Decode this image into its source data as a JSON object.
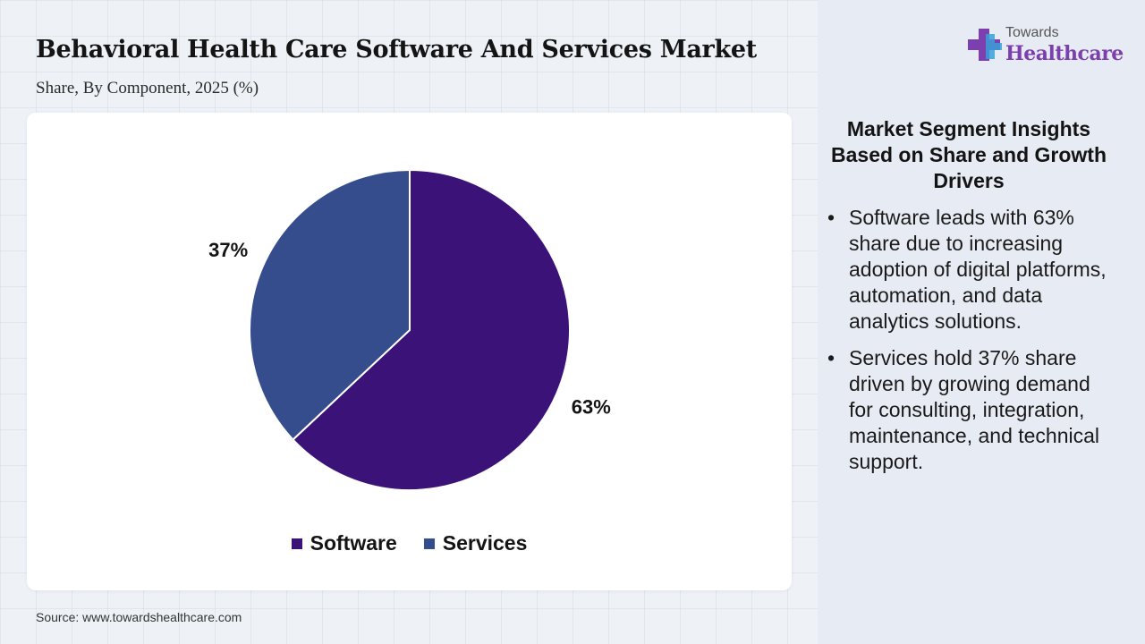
{
  "header": {
    "title": "Behavioral Health Care Software And Services Market",
    "subtitle": "Share, By Component, 2025 (%)"
  },
  "logo": {
    "line1": "Towards",
    "line2": "Healthcare"
  },
  "chart_data": {
    "type": "pie",
    "title": "Behavioral Health Care Software And Services Market",
    "subtitle": "Share, By Component, 2025 (%)",
    "categories": [
      "Software",
      "Services"
    ],
    "values": [
      63,
      37
    ],
    "labels": [
      "63%",
      "37%"
    ],
    "colors": [
      "#3b1278",
      "#354d8c"
    ],
    "legend_position": "bottom"
  },
  "insights": {
    "title": "Market Segment Insights Based on Share and Growth Drivers",
    "items": [
      "Software leads with 63% share due to increasing adoption of digital platforms, automation, and data analytics solutions.",
      "Services hold 37% share driven by growing demand for consulting, integration, maintenance, and technical support."
    ]
  },
  "source": "Source: www.towardshealthcare.com"
}
